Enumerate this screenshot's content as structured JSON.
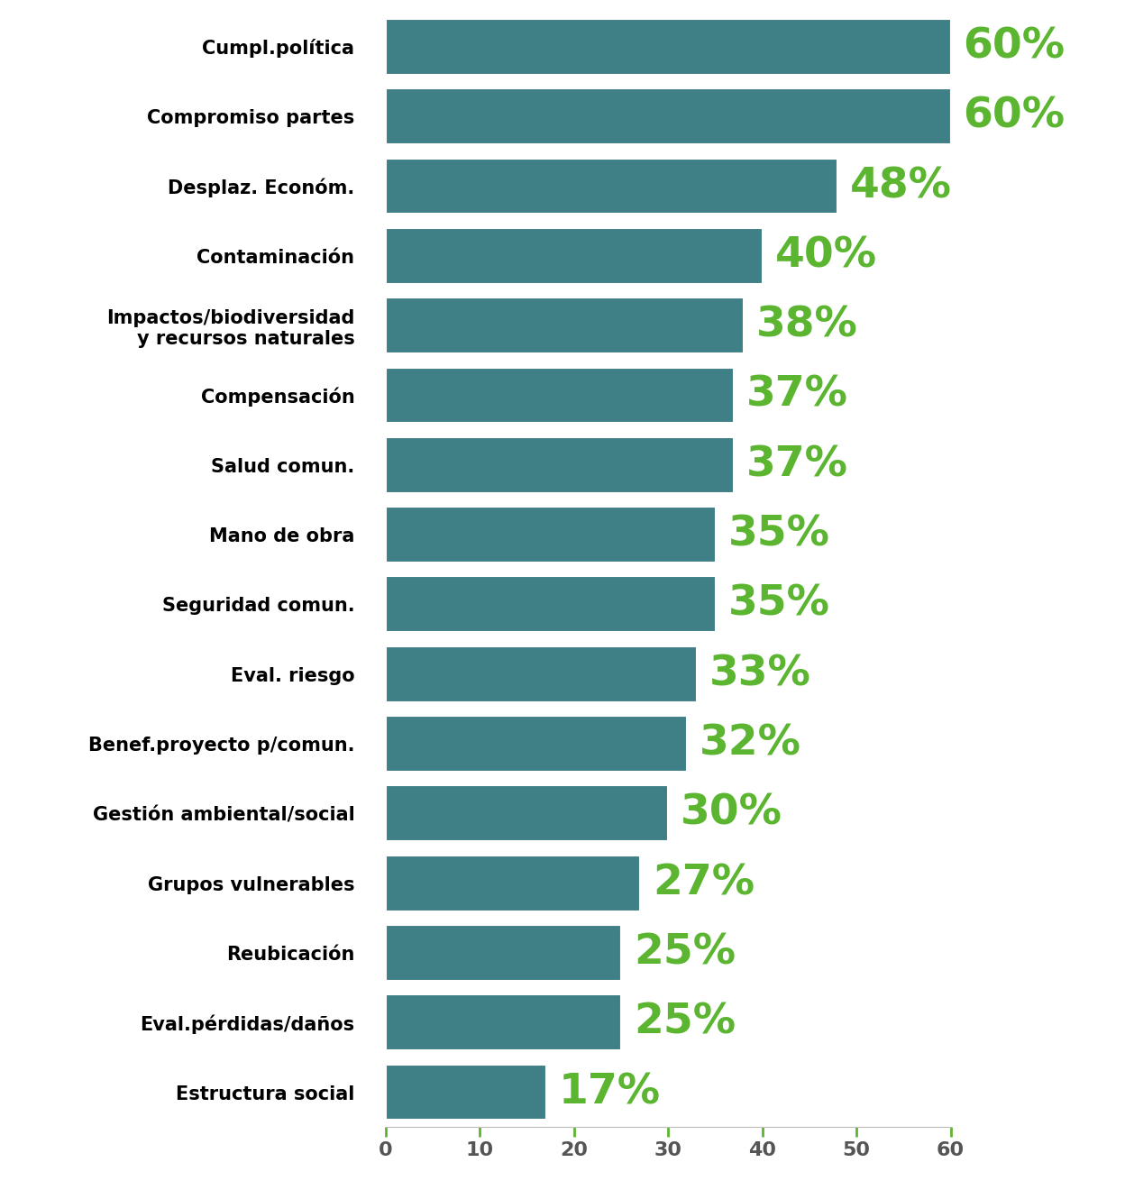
{
  "chart_data": {
    "type": "bar",
    "orientation": "horizontal",
    "categories": [
      "Cumpl.política",
      "Compromiso partes",
      "Desplaz. Económ.",
      "Contaminación",
      "Impactos/biodiversidad\ny recursos naturales",
      "Compensación",
      "Salud comun.",
      "Mano de obra",
      "Seguridad comun.",
      "Eval. riesgo",
      "Benef.proyecto p/comun.",
      "Gestión ambiental/social",
      "Grupos vulnerables",
      "Reubicación",
      "Eval.pérdidas/daños",
      "Estructura social"
    ],
    "values": [
      60,
      60,
      48,
      40,
      38,
      37,
      37,
      35,
      35,
      33,
      32,
      30,
      27,
      25,
      25,
      17
    ],
    "value_labels": [
      "60%",
      "60%",
      "48%",
      "40%",
      "38%",
      "37%",
      "37%",
      "35%",
      "35%",
      "33%",
      "32%",
      "30%",
      "27%",
      "25%",
      "25%",
      "17%"
    ],
    "color": "#3f7f86",
    "data_labels": true,
    "xlim": [
      0,
      60
    ],
    "xticks": [
      0,
      10,
      20,
      30,
      40,
      50,
      60
    ],
    "grid": false
  }
}
